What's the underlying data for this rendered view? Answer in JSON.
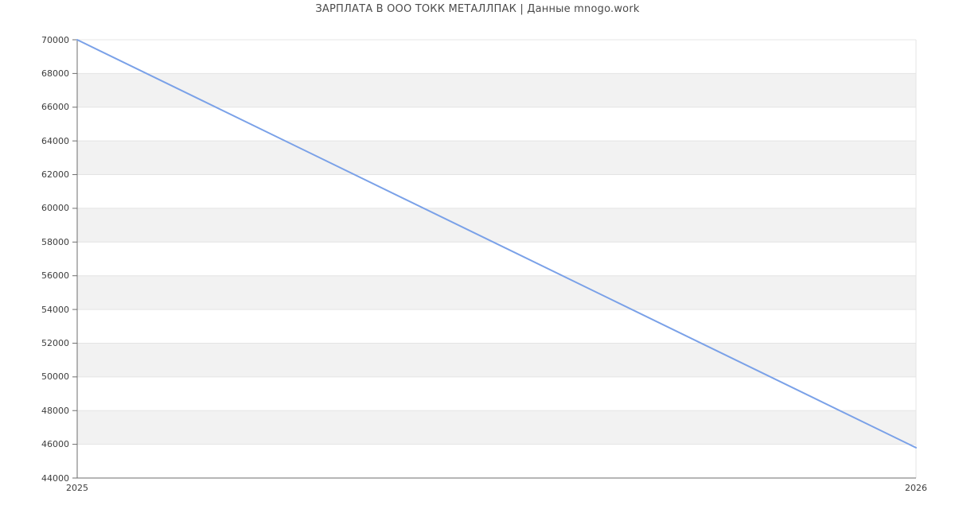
{
  "chart_data": {
    "type": "line",
    "title": "ЗАРПЛАТА В ООО ТОКК МЕТАЛЛПАК | Данные mnogo.work",
    "x": [
      2025,
      2026
    ],
    "series": [
      {
        "values": [
          70000,
          45800
        ]
      }
    ],
    "xlabel": "",
    "ylabel": "",
    "xtick_labels": [
      "2025",
      "2026"
    ],
    "ytick_values": [
      44000,
      46000,
      48000,
      50000,
      52000,
      54000,
      56000,
      58000,
      60000,
      62000,
      64000,
      66000,
      68000,
      70000
    ],
    "ytick_labels": [
      "44000",
      "46000",
      "48000",
      "50000",
      "52000",
      "54000",
      "56000",
      "58000",
      "60000",
      "62000",
      "64000",
      "66000",
      "68000",
      "70000"
    ],
    "ylim": [
      44000,
      70000
    ],
    "xlim": [
      2025,
      2026
    ],
    "grid": true,
    "legend_position": "none",
    "style": {
      "line_color": "#7aa1e8",
      "band_color": "#f2f2f2",
      "gridline_color": "#e4e4e4",
      "axis_color": "#6e6e6e",
      "tick_label_color": "#3d3d3d",
      "title_color": "#4a4a4a",
      "background": "#ffffff"
    }
  }
}
